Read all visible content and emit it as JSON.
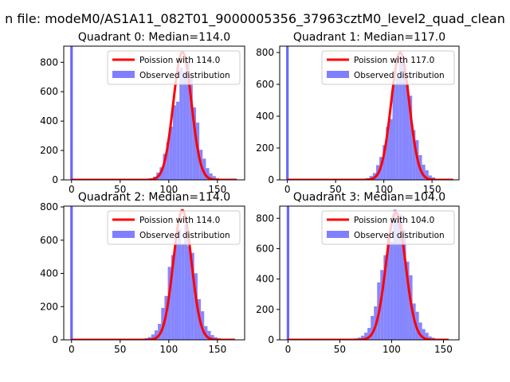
{
  "suptitle": "n file: modeM0/AS1A11_082T01_9000005356_37963cztM0_level2_quad_clean",
  "colors": {
    "fit": "#ff0000",
    "hist": "#8080ff",
    "spike": "#4d4dff",
    "axis": "#000000"
  },
  "chart_data": [
    {
      "type": "bar",
      "title": "Quadrant 0: Median=114.0",
      "median": 114.0,
      "xlim": [
        -8,
        178
      ],
      "ylim": [
        0,
        910
      ],
      "xticks": [
        0,
        50,
        100,
        150
      ],
      "yticks": [
        0,
        200,
        400,
        600,
        800
      ],
      "legend": {
        "placement": "upper right",
        "fit_label": "Poission with 114.0",
        "hist_label": "Observed distribution"
      },
      "hist_mean": 116,
      "hist_sigma": 11.2,
      "hist_peak": 760,
      "hist_range": [
        60,
        165
      ],
      "hist_bin_width": 3.4,
      "zero_bin_height": 910,
      "fit_peak": 870,
      "fit_sigma": 9.3,
      "fit_range": [
        0,
        170
      ]
    },
    {
      "type": "bar",
      "title": "Quadrant 1: Median=117.0",
      "median": 117.0,
      "xlim": [
        -8,
        178
      ],
      "ylim": [
        0,
        840
      ],
      "xticks": [
        0,
        50,
        100,
        150
      ],
      "yticks": [
        0,
        200,
        400,
        600,
        800
      ],
      "legend": {
        "placement": "upper right",
        "fit_label": "Poission with 117.0",
        "hist_label": "Observed distribution"
      },
      "hist_mean": 118,
      "hist_sigma": 11.5,
      "hist_peak": 700,
      "hist_range": [
        58,
        165
      ],
      "hist_bin_width": 3.4,
      "zero_bin_height": 840,
      "fit_peak": 800,
      "fit_sigma": 9.4,
      "fit_range": [
        0,
        172
      ]
    },
    {
      "type": "bar",
      "title": "Quadrant 2: Median=114.0",
      "median": 114.0,
      "xlim": [
        -8,
        178
      ],
      "ylim": [
        0,
        805
      ],
      "xticks": [
        0,
        50,
        100,
        150
      ],
      "yticks": [
        0,
        200,
        400,
        600,
        800
      ],
      "legend": {
        "placement": "upper right",
        "fit_label": "Poission with 114.0",
        "hist_label": "Observed distribution"
      },
      "hist_mean": 114,
      "hist_sigma": 12.0,
      "hist_peak": 690,
      "hist_range": [
        65,
        170
      ],
      "hist_bin_width": 3.4,
      "zero_bin_height": 805,
      "fit_peak": 780,
      "fit_sigma": 9.3,
      "fit_range": [
        0,
        168
      ]
    },
    {
      "type": "bar",
      "title": "Quadrant 3: Median=104.0",
      "median": 104.0,
      "xlim": [
        -8,
        165
      ],
      "ylim": [
        0,
        880
      ],
      "xticks": [
        0,
        50,
        100,
        150
      ],
      "yticks": [
        0,
        200,
        400,
        600,
        800
      ],
      "legend": {
        "placement": "upper right",
        "fit_label": "Poission with 104.0",
        "hist_label": "Observed distribution"
      },
      "hist_mean": 104,
      "hist_sigma": 12.0,
      "hist_peak": 820,
      "hist_range": [
        55,
        152
      ],
      "hist_bin_width": 3.1,
      "zero_bin_height": 880,
      "fit_peak": 840,
      "fit_sigma": 9.3,
      "fit_range": [
        0,
        155
      ]
    }
  ]
}
